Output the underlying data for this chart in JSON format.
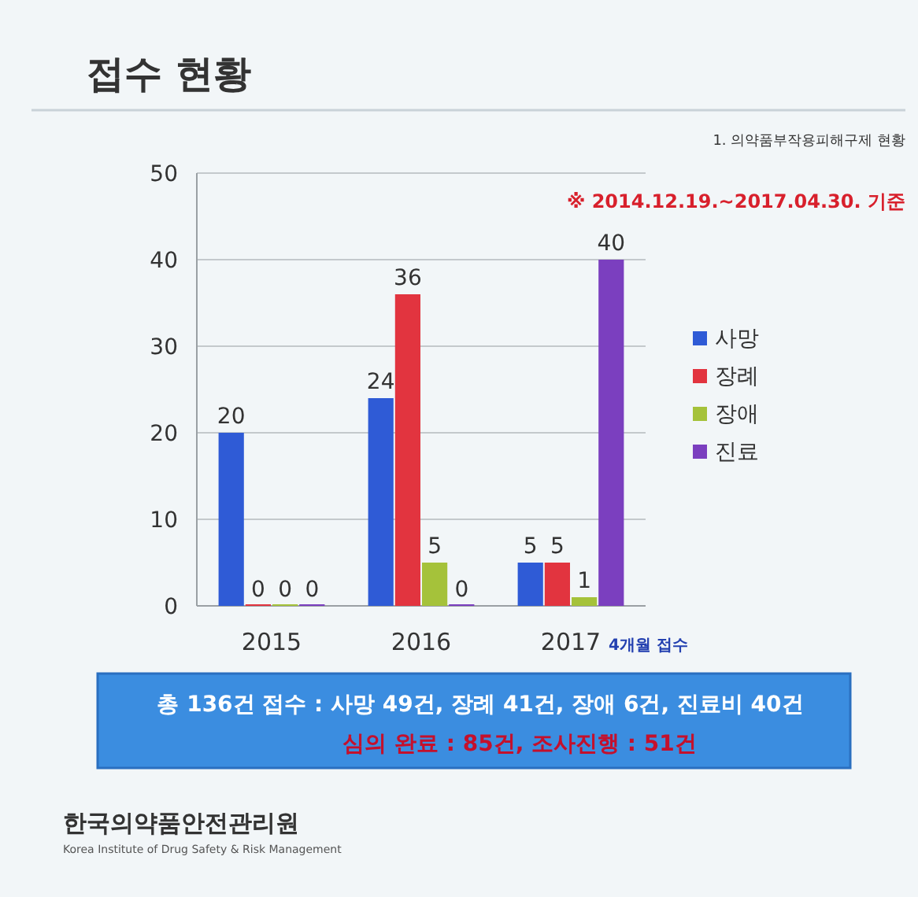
{
  "chart_data": {
    "type": "bar",
    "title": "접수 현황",
    "categories": [
      "2015",
      "2016",
      "2017"
    ],
    "series": [
      {
        "name": "사망",
        "color": "#2f5bd6",
        "values": [
          20,
          24,
          5
        ]
      },
      {
        "name": "장례",
        "color": "#e2343f",
        "values": [
          0,
          36,
          5
        ]
      },
      {
        "name": "장애",
        "color": "#a5c23a",
        "values": [
          0,
          5,
          1
        ]
      },
      {
        "name": "진료",
        "color": "#7b3fbf",
        "values": [
          0,
          0,
          40
        ]
      }
    ],
    "ylim": [
      0,
      50
    ],
    "yticks": [
      0,
      10,
      20,
      30,
      40,
      50
    ],
    "grid": "y",
    "legend": "right",
    "data_labels": true,
    "annotations": [
      "1. 의약품부작용피해구제 현황",
      "※ 2014.12.19.~2017.04.30. 기준",
      "4개월 접수",
      "총 136건 접수 : 사망 49건, 장례 41건, 장애 6건, 진료비 40건",
      "심의 완료 : 85건, 조사진행 : 51건",
      "한국의약품안전관리원",
      "Korea Institute of Drug Safety & Risk Management"
    ]
  }
}
